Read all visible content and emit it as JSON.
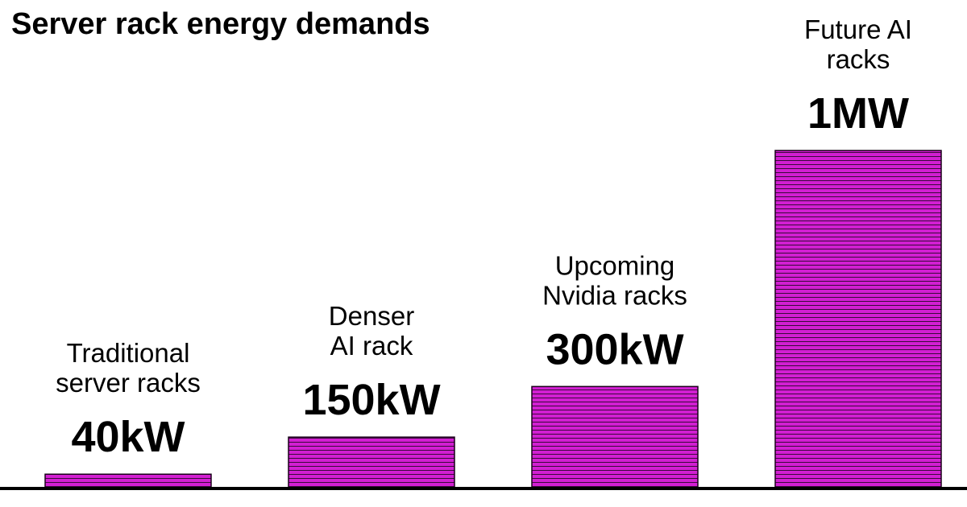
{
  "chart_data": {
    "type": "bar",
    "title": "Server rack energy demands",
    "categories": [
      [
        "Traditional",
        "server racks"
      ],
      [
        "Denser",
        "AI rack"
      ],
      [
        "Upcoming",
        "Nvidia racks"
      ],
      [
        "Future AI",
        "racks"
      ]
    ],
    "values_kw": [
      40,
      150,
      300,
      1000
    ],
    "value_labels": [
      "40kW",
      "150kW",
      "300kW",
      "1MW"
    ],
    "ylim": [
      0,
      1000
    ],
    "xlabel": "",
    "ylabel": "",
    "grid": false,
    "bar_color": "#d21fd2",
    "bar_stripe_color": "#3a0a3a",
    "baseline_color": "#000000"
  }
}
